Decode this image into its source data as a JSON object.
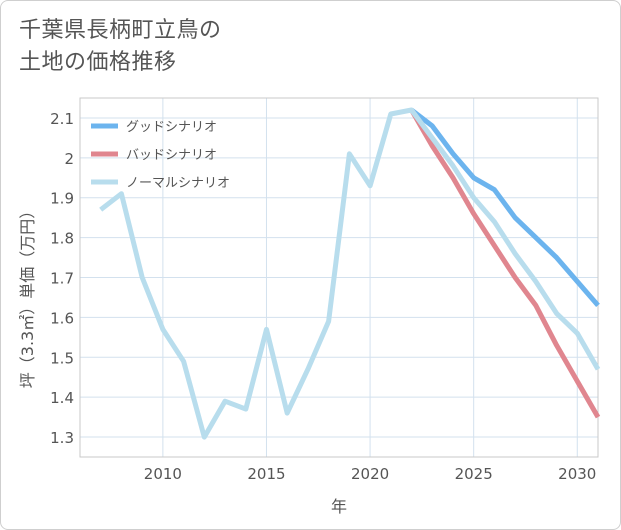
{
  "title_line1": "千葉県長柄町立鳥の",
  "title_line2": "土地の価格推移",
  "chart_data": {
    "type": "line",
    "xlabel": "年",
    "ylabel": "坪（3.3㎡）単価（万円）",
    "xlim": [
      2006,
      2031
    ],
    "ylim": [
      1.25,
      2.15
    ],
    "x_ticks": [
      2010,
      2015,
      2020,
      2025,
      2030
    ],
    "y_ticks": [
      1.3,
      1.4,
      1.5,
      1.6,
      1.7,
      1.8,
      1.9,
      2,
      2.1
    ],
    "y_tick_labels": [
      "1.3",
      "1.4",
      "1.5",
      "1.6",
      "1.7",
      "1.8",
      "1.9",
      "2",
      "2.1"
    ],
    "grid": true,
    "legend_position": "top-left",
    "series": [
      {
        "name": "グッドシナリオ",
        "color": "#6cb4ee",
        "x": [
          2022,
          2023,
          2024,
          2025,
          2026,
          2027,
          2028,
          2029,
          2030,
          2031
        ],
        "y": [
          2.12,
          2.08,
          2.01,
          1.95,
          1.92,
          1.85,
          1.8,
          1.75,
          1.69,
          1.63
        ]
      },
      {
        "name": "バッドシナリオ",
        "color": "#e0868f",
        "x": [
          2022,
          2023,
          2024,
          2025,
          2026,
          2027,
          2028,
          2029,
          2030,
          2031
        ],
        "y": [
          2.12,
          2.03,
          1.95,
          1.86,
          1.78,
          1.7,
          1.63,
          1.53,
          1.44,
          1.35
        ]
      },
      {
        "name": "ノーマルシナリオ",
        "color": "#b8dded",
        "x": [
          2007,
          2008,
          2009,
          2010,
          2011,
          2012,
          2013,
          2014,
          2015,
          2016,
          2017,
          2018,
          2019,
          2020,
          2021,
          2022,
          2023,
          2024,
          2025,
          2026,
          2027,
          2028,
          2029,
          2030,
          2031
        ],
        "y": [
          1.87,
          1.91,
          1.7,
          1.57,
          1.49,
          1.3,
          1.39,
          1.37,
          1.57,
          1.36,
          1.47,
          1.59,
          2.01,
          1.93,
          2.11,
          2.12,
          2.05,
          1.98,
          1.9,
          1.84,
          1.76,
          1.69,
          1.61,
          1.56,
          1.47
        ]
      }
    ]
  }
}
